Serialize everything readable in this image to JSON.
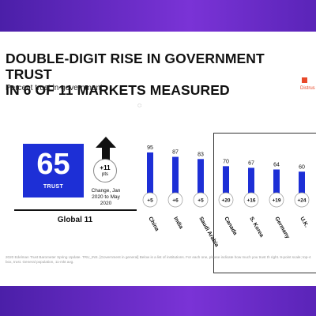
{
  "title_line1": "DOUBLE-DIGIT RISE IN GOVERNMENT TRUST",
  "title_line2": "IN 6 OF 11 MARKETS MEASURED",
  "subtitle": "Percent trust in government",
  "legend_label": "Distrus",
  "global": {
    "value": "65",
    "value_label": "TRUST",
    "change": "+11",
    "change_unit": "pts",
    "change_label": "Change, Jan 2020 to May 2020",
    "name": "Global 11"
  },
  "footnote": "2020 Edelman Trust Barometer Spring Update. TRU_INS. [Government in general] Below is a list of institutions. For each one, please indicate how much you trust th right. 9-point scale; top-4 box, trust. General population, 11-mkt avg.",
  "colors": {
    "bar": "#1d2fd6",
    "distrust": "#e8492a",
    "band": "#6a2fc4"
  },
  "chart_data": {
    "type": "bar",
    "categories": [
      "China",
      "India",
      "Saudi Arabia",
      "Canada",
      "S. Korea",
      "Germany",
      "U.K."
    ],
    "values": [
      95,
      87,
      83,
      70,
      67,
      64,
      60
    ],
    "changes": [
      "+5",
      "+6",
      "+5",
      "+20",
      "+16",
      "+19",
      "+24"
    ],
    "ylabel": "Percent trust in government"
  }
}
